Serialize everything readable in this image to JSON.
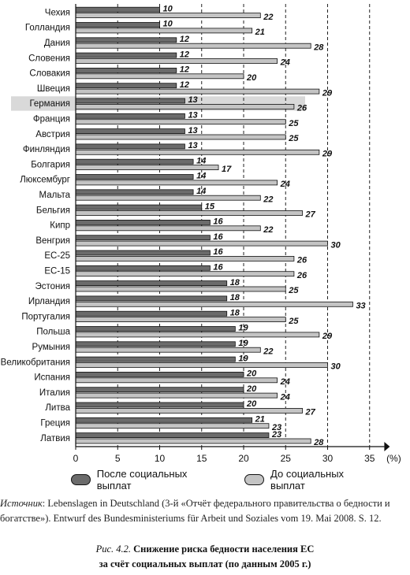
{
  "chart_data": {
    "type": "bar",
    "orientation": "horizontal",
    "categories": [
      "Чехия",
      "Голландия",
      "Дания",
      "Словения",
      "Словакия",
      "Швеция",
      "Германия",
      "Франция",
      "Австрия",
      "Финляндия",
      "Болгария",
      "Люксембург",
      "Мальта",
      "Бельгия",
      "Кипр",
      "Венгрия",
      "ЕС-25",
      "ЕС-15",
      "Эстония",
      "Ирландия",
      "Португалия",
      "Польша",
      "Румыния",
      "Великобритания",
      "Испания",
      "Италия",
      "Литва",
      "Греция",
      "Латвия"
    ],
    "series": [
      {
        "name": "После социальных выплат",
        "color": "#6b6b6b",
        "values": [
          10,
          10,
          12,
          12,
          12,
          12,
          13,
          13,
          13,
          13,
          14,
          14,
          14,
          15,
          16,
          16,
          16,
          16,
          18,
          18,
          18,
          19,
          19,
          19,
          20,
          20,
          20,
          21,
          23
        ]
      },
      {
        "name": "До социальных выплат",
        "color": "#c4c4c4",
        "values": [
          22,
          21,
          28,
          24,
          20,
          29,
          26,
          25,
          25,
          29,
          17,
          24,
          22,
          27,
          22,
          30,
          26,
          26,
          25,
          33,
          25,
          29,
          22,
          30,
          24,
          24,
          27,
          23,
          28
        ]
      }
    ],
    "highlighted_category": "Германия",
    "xlim": [
      0,
      36
    ],
    "xticks": [
      0,
      5,
      10,
      15,
      20,
      25,
      30,
      35
    ],
    "xunit": "(%)",
    "grid": "vertical dashed"
  },
  "legend": {
    "after_label": "После социальных выплат",
    "before_label": "До социальных выплат"
  },
  "source": {
    "label": "Источник",
    "text": ": Lebenslagen in Deutschland (3-й «Отчёт федерального правительства о бедности и богатстве»). Entwurf des Bundesministeriums für Arbeit und Soziales vom 19. Mai 2008. S. 12."
  },
  "caption": {
    "fig_label": "Рис. 4.2.",
    "title_line1": "Снижение риска бедности населения ЕС",
    "title_line2": "за счёт социальных выплат (по данным 2005 г.)"
  }
}
